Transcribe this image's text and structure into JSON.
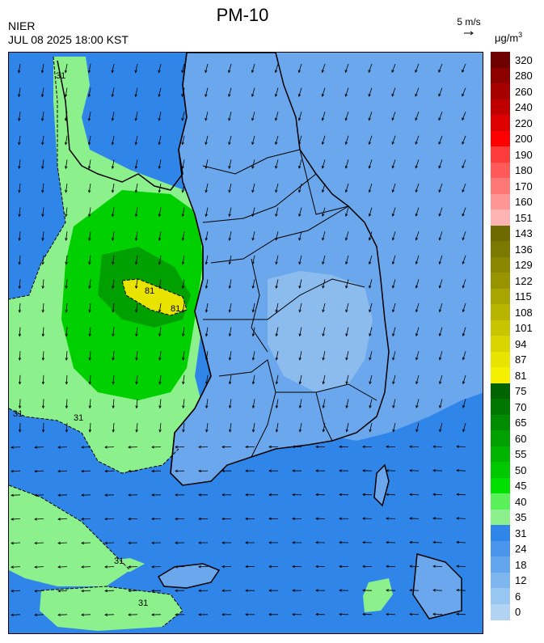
{
  "header": {
    "title": "PM-10",
    "agency": "NIER",
    "datetime": "JUL 08 2025 18:00 KST"
  },
  "wind_reference": {
    "label": "5 m/s"
  },
  "legend": {
    "unit_base": "μg/m",
    "unit_exp": "3",
    "levels": [
      {
        "label": "320",
        "color": "#6e0000"
      },
      {
        "label": "280",
        "color": "#8c0000"
      },
      {
        "label": "260",
        "color": "#a60000"
      },
      {
        "label": "240",
        "color": "#c00000"
      },
      {
        "label": "220",
        "color": "#dc0000"
      },
      {
        "label": "200",
        "color": "#ff0000"
      },
      {
        "label": "190",
        "color": "#ff3c3c"
      },
      {
        "label": "180",
        "color": "#ff5a5a"
      },
      {
        "label": "170",
        "color": "#ff7878"
      },
      {
        "label": "160",
        "color": "#ff9696"
      },
      {
        "label": "151",
        "color": "#ffb4b4"
      },
      {
        "label": "143",
        "color": "#6e6a00"
      },
      {
        "label": "136",
        "color": "#7c7800"
      },
      {
        "label": "129",
        "color": "#8a8600"
      },
      {
        "label": "122",
        "color": "#989400"
      },
      {
        "label": "115",
        "color": "#a8a400"
      },
      {
        "label": "108",
        "color": "#b8b400"
      },
      {
        "label": "101",
        "color": "#c8c400"
      },
      {
        "label": "94",
        "color": "#d8d400"
      },
      {
        "label": "87",
        "color": "#e8e400"
      },
      {
        "label": "81",
        "color": "#f4f000"
      },
      {
        "label": "75",
        "color": "#006400"
      },
      {
        "label": "70",
        "color": "#007800"
      },
      {
        "label": "65",
        "color": "#008c00"
      },
      {
        "label": "60",
        "color": "#00a000"
      },
      {
        "label": "55",
        "color": "#00b400"
      },
      {
        "label": "50",
        "color": "#00c800"
      },
      {
        "label": "45",
        "color": "#00e000"
      },
      {
        "label": "40",
        "color": "#5af05a"
      },
      {
        "label": "35",
        "color": "#8cf08c"
      },
      {
        "label": "31",
        "color": "#2f86e8"
      },
      {
        "label": "24",
        "color": "#4a96ec"
      },
      {
        "label": "18",
        "color": "#64a6ee"
      },
      {
        "label": "12",
        "color": "#7eb6f0"
      },
      {
        "label": "6",
        "color": "#98c6f2"
      },
      {
        "label": "0",
        "color": "#b2d4f4"
      }
    ]
  },
  "map": {
    "colors": {
      "sea_base": "#2f86e8",
      "land_base": "#6aa7ec",
      "land_inner": "#8cbcee",
      "low_green": "#8cf08c",
      "mid_green": "#00d000",
      "dark_green": "#00a000",
      "hotspot": "#e8e400",
      "border": "#000000",
      "wind": "#000000"
    },
    "contour_labels": [
      {
        "text": "31"
      },
      {
        "text": "31"
      },
      {
        "text": "31"
      },
      {
        "text": "31"
      },
      {
        "text": "31"
      },
      {
        "text": "81"
      },
      {
        "text": "81"
      }
    ]
  }
}
